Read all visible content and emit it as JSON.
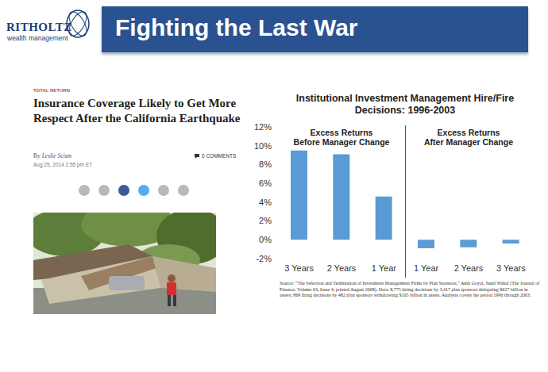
{
  "header": {
    "logo": "RITHOLTZ",
    "logo_subtitle": "wealth management",
    "title": "Fighting the Last War"
  },
  "article": {
    "section": "TOTAL RETURN",
    "headline": "Insurance Coverage Likely to Get More Respect After the California Earthquake",
    "byline": "By Leslie Scism",
    "date": "Aug 25, 2014 2:55 pm ET",
    "comments": "0 COMMENTS"
  },
  "chart_data": {
    "type": "bar",
    "title": "Institutional Investment Management Hire/Fire Decisions: 1996-2003",
    "categories": [
      "3 Years",
      "2 Years",
      "1 Year",
      "1 Year",
      "2 Years",
      "3 Years"
    ],
    "values": [
      9.5,
      9.1,
      4.6,
      -0.9,
      -0.8,
      -0.4
    ],
    "color": "#5b9bd5",
    "ylim": [
      -2,
      12
    ],
    "yticks": [
      {
        "value": -2,
        "label": "-2%"
      },
      {
        "value": 0,
        "label": "0%"
      },
      {
        "value": 2,
        "label": "2%"
      },
      {
        "value": 4,
        "label": "4%"
      },
      {
        "value": 6,
        "label": "6%"
      },
      {
        "value": 8,
        "label": "8%"
      },
      {
        "value": 10,
        "label": "10%"
      },
      {
        "value": 12,
        "label": "12%"
      }
    ],
    "grid": false,
    "annotations": [
      "Excess Returns Before Manager Change",
      "Excess Returns After Manager Change"
    ],
    "source": "Source: “The Selection and Termination of Investment Management Firms by Plan Sponsors,” Amit Goyal, Sunil Wahal (The Journal of Finance, Volume 63, Issue 4, printed August 2008). Data: 8,775 hiring decisions by 3,417 plan sponsors delegating $627 billion in assets; 869 firing decisions by 482 plan sponsors withdrawing $105 billion in assets. Analysis covers the period 1996 through 2003."
  }
}
